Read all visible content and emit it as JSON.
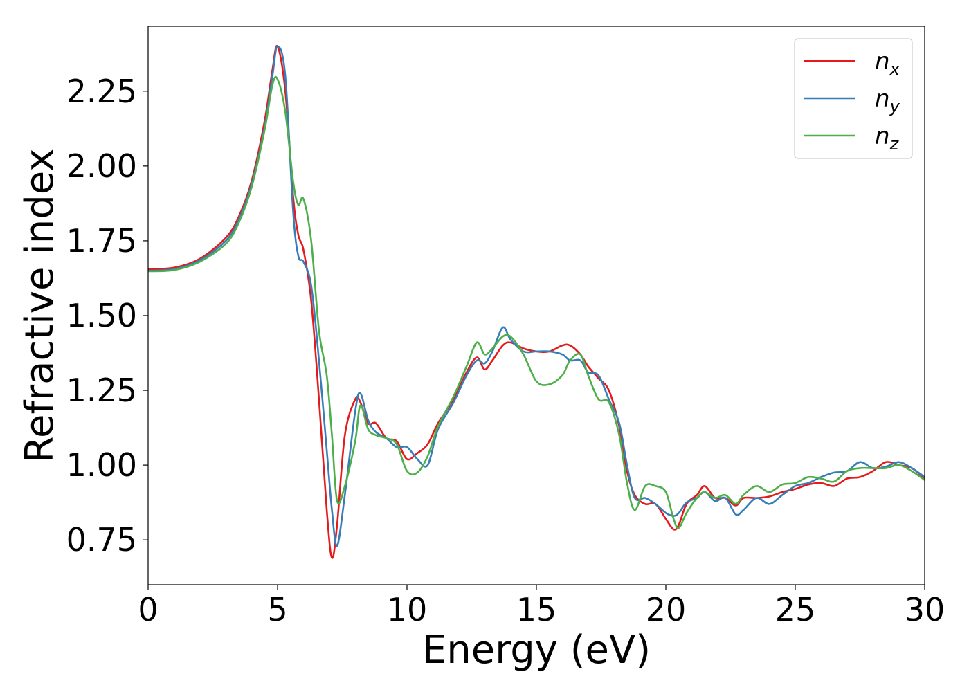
{
  "chart_data": {
    "type": "line",
    "x_label": "Energy (eV)",
    "y_label": "Refractive index",
    "x": [
      0,
      1,
      2,
      3,
      3.5,
      4,
      4.5,
      4.8,
      5,
      5.3,
      5.6,
      5.8,
      6,
      6.3,
      6.6,
      6.9,
      7.1,
      7.3,
      7.6,
      8,
      8.2,
      8.5,
      8.8,
      9.2,
      9.6,
      10,
      10.4,
      10.8,
      11.2,
      11.8,
      12.3,
      12.7,
      13,
      13.3,
      13.7,
      14,
      14.5,
      15,
      15.5,
      16,
      16.3,
      16.7,
      17,
      17.4,
      17.8,
      18.2,
      18.5,
      18.8,
      19.2,
      19.6,
      20,
      20.3,
      20.5,
      20.8,
      21.2,
      21.5,
      21.9,
      22.3,
      22.7,
      23,
      23.5,
      24,
      24.5,
      25,
      25.5,
      26,
      26.5,
      27,
      27.5,
      28,
      28.5,
      29,
      29.5,
      30
    ],
    "series": [
      {
        "name": "nx",
        "color": "#e41a1c",
        "values": [
          1.655,
          1.66,
          1.69,
          1.76,
          1.83,
          1.95,
          2.15,
          2.32,
          2.4,
          2.25,
          1.9,
          1.77,
          1.72,
          1.55,
          1.22,
          0.85,
          0.69,
          0.8,
          1.1,
          1.22,
          1.21,
          1.14,
          1.14,
          1.09,
          1.08,
          1.02,
          1.04,
          1.07,
          1.14,
          1.22,
          1.31,
          1.36,
          1.32,
          1.35,
          1.4,
          1.41,
          1.39,
          1.38,
          1.38,
          1.4,
          1.4,
          1.37,
          1.33,
          1.29,
          1.25,
          1.13,
          0.98,
          0.9,
          0.87,
          0.87,
          0.82,
          0.785,
          0.8,
          0.87,
          0.9,
          0.93,
          0.89,
          0.89,
          0.865,
          0.89,
          0.89,
          0.895,
          0.91,
          0.92,
          0.935,
          0.94,
          0.93,
          0.955,
          0.96,
          0.98,
          1.01,
          1.0,
          0.99,
          0.955
        ]
      },
      {
        "name": "ny",
        "color": "#377eb8",
        "values": [
          1.65,
          1.655,
          1.685,
          1.75,
          1.82,
          1.94,
          2.13,
          2.3,
          2.4,
          2.3,
          1.85,
          1.7,
          1.68,
          1.6,
          1.35,
          1.05,
          0.85,
          0.73,
          0.9,
          1.18,
          1.24,
          1.15,
          1.11,
          1.09,
          1.06,
          1.06,
          1.02,
          1.0,
          1.12,
          1.21,
          1.3,
          1.35,
          1.34,
          1.38,
          1.46,
          1.42,
          1.38,
          1.38,
          1.38,
          1.37,
          1.35,
          1.35,
          1.31,
          1.3,
          1.22,
          1.14,
          1.0,
          0.89,
          0.89,
          0.87,
          0.84,
          0.83,
          0.84,
          0.875,
          0.89,
          0.91,
          0.88,
          0.89,
          0.835,
          0.85,
          0.89,
          0.87,
          0.9,
          0.93,
          0.94,
          0.96,
          0.975,
          0.98,
          1.01,
          0.99,
          0.995,
          1.01,
          0.99,
          0.96
        ]
      },
      {
        "name": "nz",
        "color": "#4daf4a",
        "values": [
          1.648,
          1.652,
          1.68,
          1.74,
          1.81,
          1.93,
          2.12,
          2.27,
          2.29,
          2.18,
          1.95,
          1.87,
          1.89,
          1.75,
          1.45,
          1.3,
          1.1,
          0.88,
          0.93,
          1.08,
          1.2,
          1.12,
          1.1,
          1.09,
          1.07,
          0.98,
          0.975,
          1.03,
          1.13,
          1.23,
          1.33,
          1.41,
          1.37,
          1.39,
          1.43,
          1.43,
          1.37,
          1.28,
          1.27,
          1.3,
          1.35,
          1.37,
          1.3,
          1.22,
          1.21,
          1.1,
          0.94,
          0.85,
          0.93,
          0.93,
          0.91,
          0.82,
          0.79,
          0.84,
          0.89,
          0.91,
          0.89,
          0.9,
          0.87,
          0.9,
          0.93,
          0.91,
          0.935,
          0.94,
          0.96,
          0.955,
          0.945,
          0.98,
          0.99,
          0.99,
          0.99,
          1.0,
          0.98,
          0.95
        ]
      }
    ],
    "xlim": [
      0,
      30
    ],
    "xticks": [
      0,
      5,
      10,
      15,
      20,
      25,
      30
    ],
    "ylim": [
      0.6,
      2.467
    ],
    "yticks": [
      0.75,
      {
        "value": 1.0,
        "label": "1.00"
      },
      1.25,
      {
        "value": 1.5,
        "label": "1.50"
      },
      1.75,
      {
        "value": 2.0,
        "label": "2.00"
      },
      2.25
    ],
    "grid": false,
    "legend": "upper right"
  }
}
